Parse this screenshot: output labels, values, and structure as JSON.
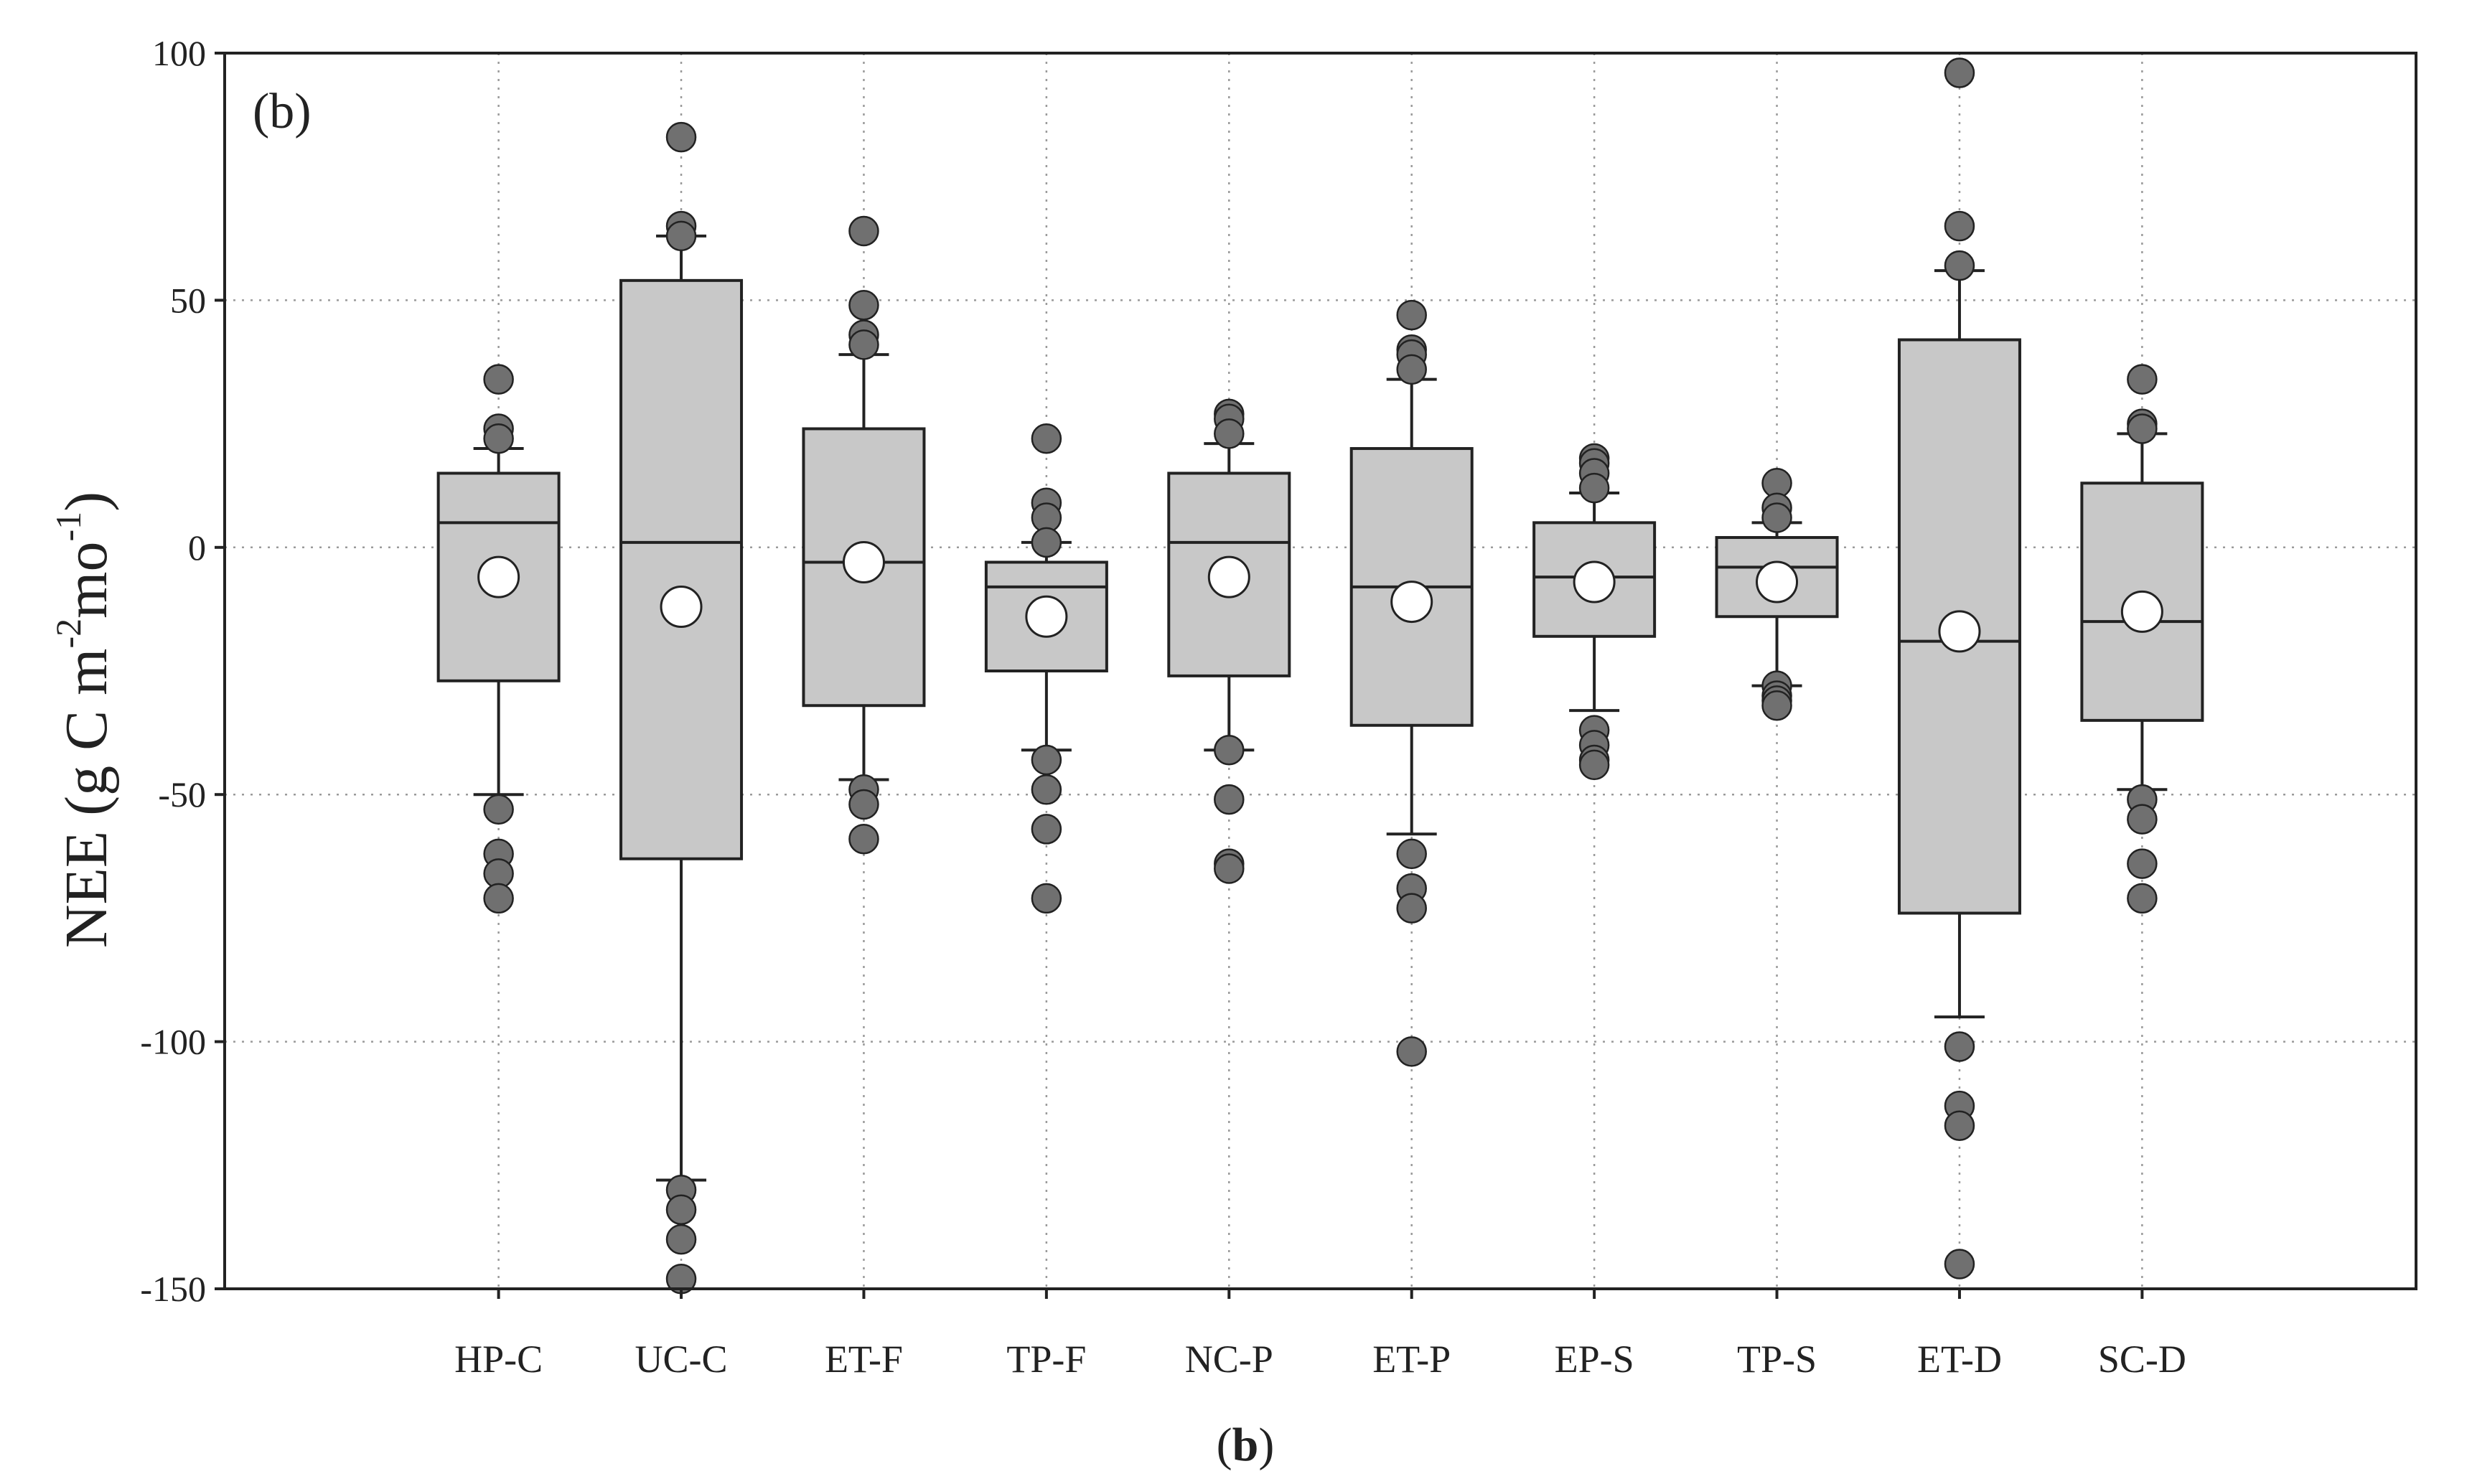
{
  "chart_data": {
    "type": "box",
    "panel_label": "(b)",
    "caption": {
      "open": "(",
      "bold": "b",
      "close": ")"
    },
    "ylabel": {
      "parts": [
        {
          "text": "NEE (g C m",
          "sup": false
        },
        {
          "text": "-2",
          "sup": true
        },
        {
          "text": "mo",
          "sup": false
        },
        {
          "text": "-1",
          "sup": true
        },
        {
          "text": ")",
          "sup": false
        }
      ]
    },
    "ylim": [
      -150,
      100
    ],
    "yticks": [
      100,
      50,
      0,
      -50,
      -100,
      -150
    ],
    "grid": true,
    "categories": [
      "HP-C",
      "UC-C",
      "ET-F",
      "TP-F",
      "NC-P",
      "ET-P",
      "EP-S",
      "TP-S",
      "ET-D",
      "SC-D"
    ],
    "boxes": [
      {
        "whisker_low": -50,
        "q1": -27,
        "median": 5,
        "q3": 15,
        "whisker_high": 20,
        "mean": -6,
        "outliers": [
          34,
          24,
          22,
          -53,
          -62,
          -66,
          -71
        ]
      },
      {
        "whisker_low": -128,
        "q1": -63,
        "median": 1,
        "q3": 54,
        "whisker_high": 63,
        "mean": -12,
        "outliers": [
          83,
          65,
          63,
          -130,
          -134,
          -140,
          -148
        ]
      },
      {
        "whisker_low": -47,
        "q1": -32,
        "median": -3,
        "q3": 24,
        "whisker_high": 39,
        "mean": -3,
        "outliers": [
          64,
          49,
          43,
          41,
          -49,
          -52,
          -59
        ]
      },
      {
        "whisker_low": -41,
        "q1": -25,
        "median": -8,
        "q3": -3,
        "whisker_high": 1,
        "mean": -14,
        "outliers": [
          22,
          9,
          6,
          1,
          -43,
          -49,
          -57,
          -71
        ]
      },
      {
        "whisker_low": -41,
        "q1": -26,
        "median": 1,
        "q3": 15,
        "whisker_high": 21,
        "mean": -6,
        "outliers": [
          27,
          26,
          23,
          -41,
          -51,
          -64,
          -65
        ]
      },
      {
        "whisker_low": -58,
        "q1": -36,
        "median": -8,
        "q3": 20,
        "whisker_high": 34,
        "mean": -11,
        "outliers": [
          47,
          40,
          39,
          36,
          -62,
          -69,
          -73,
          -102
        ]
      },
      {
        "whisker_low": -33,
        "q1": -18,
        "median": -6,
        "q3": 5,
        "whisker_high": 11,
        "mean": -7,
        "outliers": [
          18,
          17,
          15,
          12,
          -37,
          -40,
          -43,
          -44
        ]
      },
      {
        "whisker_low": -28,
        "q1": -14,
        "median": -4,
        "q3": 2,
        "whisker_high": 5,
        "mean": -7,
        "outliers": [
          13,
          8,
          6,
          -28,
          -30,
          -31,
          -32
        ]
      },
      {
        "whisker_low": -95,
        "q1": -74,
        "median": -19,
        "q3": 42,
        "whisker_high": 56,
        "mean": -17,
        "outliers": [
          96,
          65,
          57,
          -101,
          -113,
          -117,
          -145
        ]
      },
      {
        "whisker_low": -49,
        "q1": -35,
        "median": -15,
        "q3": 13,
        "whisker_high": 23,
        "mean": -13,
        "outliers": [
          34,
          25,
          24,
          -51,
          -55,
          -64,
          -71
        ]
      }
    ],
    "colors": {
      "box_fill": "#c8c8c8",
      "outlier_fill": "#707070",
      "mean_fill": "#ffffff",
      "line": "#222222",
      "grid": "#9a9a9a"
    }
  }
}
